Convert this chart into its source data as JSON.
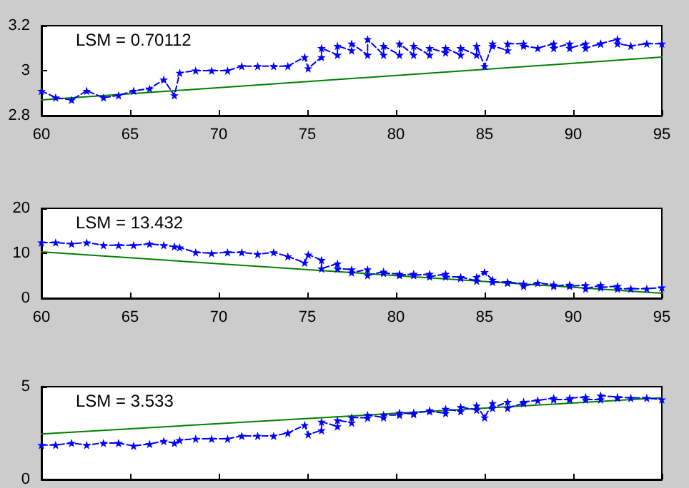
{
  "chart_data": [
    {
      "type": "line",
      "annotations": [
        "LSM = 0.70112"
      ],
      "xlim": [
        60,
        95
      ],
      "xticks": [
        60,
        65,
        70,
        75,
        80,
        85,
        90,
        95
      ],
      "ylim": [
        2.8,
        3.2
      ],
      "yticks": [
        2.8,
        3,
        3.2
      ],
      "grid": false,
      "series": [
        {
          "color": "#0000ff",
          "line_style": "dashed",
          "marker": "star",
          "x": [
            60,
            60.8,
            61.7,
            62.55,
            63.5,
            64.35,
            65.2,
            66.1,
            66.9,
            67.5,
            67.8,
            68.7,
            69.6,
            70.5,
            71.3,
            72.2,
            73.1,
            73.9,
            74.85,
            75.05,
            75.8,
            75.8,
            76.7,
            76.7,
            77.5,
            77.5,
            78.4,
            78.4,
            79.3,
            79.3,
            80.2,
            80.2,
            81,
            81,
            81.9,
            81.9,
            82.8,
            82.8,
            83.65,
            83.65,
            84.55,
            84.55,
            85,
            85.45,
            85.45,
            86.3,
            86.3,
            87.2,
            87.2,
            88,
            88.9,
            88.9,
            89.8,
            89.8,
            90.7,
            90.7,
            91.55,
            91.55,
            92.5,
            92.5,
            93.25,
            94.15,
            95
          ],
          "values": [
            2.91,
            2.88,
            2.87,
            2.91,
            2.88,
            2.89,
            2.91,
            2.92,
            2.96,
            2.89,
            2.99,
            3.0,
            3.0,
            3.0,
            3.02,
            3.02,
            3.02,
            3.02,
            3.06,
            3.01,
            3.06,
            3.1,
            3.07,
            3.11,
            3.09,
            3.12,
            3.07,
            3.14,
            3.07,
            3.11,
            3.07,
            3.12,
            3.07,
            3.11,
            3.07,
            3.1,
            3.08,
            3.1,
            3.07,
            3.1,
            3.07,
            3.11,
            3.02,
            3.12,
            3.11,
            3.09,
            3.12,
            3.12,
            3.11,
            3.1,
            3.12,
            3.1,
            3.12,
            3.1,
            3.12,
            3.1,
            3.12,
            3.12,
            3.14,
            3.12,
            3.11,
            3.12,
            3.12
          ]
        },
        {
          "color": "#008000",
          "line_style": "solid",
          "marker": "none",
          "x": [
            60,
            95
          ],
          "values": [
            2.87,
            3.06
          ]
        }
      ]
    },
    {
      "type": "line",
      "annotations": [
        "LSM = 13.432"
      ],
      "xlim": [
        60,
        95
      ],
      "xticks": [
        60,
        65,
        70,
        75,
        80,
        85,
        90,
        95
      ],
      "ylim": [
        0,
        20
      ],
      "yticks": [
        0,
        10,
        20
      ],
      "grid": false,
      "series": [
        {
          "color": "#0000ff",
          "line_style": "dashed",
          "marker": "star",
          "x": [
            60,
            60.8,
            61.7,
            62.55,
            63.5,
            64.35,
            65.2,
            66.1,
            66.9,
            67.5,
            67.8,
            68.7,
            69.6,
            70.5,
            71.3,
            72.2,
            73.1,
            73.9,
            74.85,
            75.05,
            75.8,
            75.8,
            76.7,
            76.7,
            77.5,
            77.5,
            78.4,
            78.4,
            79.3,
            79.3,
            80.2,
            80.2,
            81,
            81,
            81.9,
            81.9,
            82.8,
            82.8,
            83.65,
            83.65,
            84.55,
            84.55,
            85,
            85.45,
            85.45,
            86.3,
            86.3,
            87.2,
            87.2,
            88,
            88.9,
            88.9,
            89.8,
            89.8,
            90.7,
            90.7,
            91.55,
            91.55,
            92.5,
            92.5,
            93.25,
            94.15,
            95
          ],
          "values": [
            12.4,
            12.4,
            12.1,
            12.4,
            11.8,
            11.8,
            11.8,
            12.1,
            11.8,
            11.5,
            11.3,
            10.2,
            10.0,
            10.2,
            10.2,
            9.8,
            10.2,
            9.3,
            7.9,
            9.7,
            8.5,
            6.6,
            7.7,
            6.6,
            6.4,
            5.7,
            6.4,
            5.1,
            5.9,
            5.6,
            5.4,
            5.1,
            5.4,
            5.1,
            5.4,
            4.8,
            5.4,
            4.8,
            4.7,
            4.5,
            3.9,
            4.7,
            5.8,
            4.1,
            3.6,
            3.6,
            3.4,
            3.2,
            2.7,
            3.4,
            3.0,
            2.7,
            3.0,
            2.7,
            2.9,
            2.1,
            2.9,
            2.4,
            2.7,
            2.1,
            2.1,
            2.1,
            2.4
          ]
        },
        {
          "color": "#008000",
          "line_style": "solid",
          "marker": "none",
          "x": [
            60,
            95
          ],
          "values": [
            10.3,
            1.1
          ]
        }
      ]
    },
    {
      "type": "line",
      "annotations": [
        "LSM = 3.533"
      ],
      "xlim": [
        60,
        95
      ],
      "xticks": [
        60,
        65,
        70,
        75,
        80,
        85,
        90,
        95
      ],
      "ylim": [
        0,
        5
      ],
      "yticks": [
        0,
        5
      ],
      "grid": false,
      "tick_labels": "y",
      "series": [
        {
          "color": "#0000ff",
          "line_style": "dashed",
          "marker": "star",
          "x": [
            60,
            60.8,
            61.7,
            62.55,
            63.5,
            64.35,
            65.2,
            66.1,
            66.9,
            67.5,
            67.8,
            68.7,
            69.6,
            70.5,
            71.3,
            72.2,
            73.1,
            73.9,
            74.85,
            75.05,
            75.8,
            75.8,
            76.7,
            76.7,
            77.5,
            77.5,
            78.4,
            78.4,
            79.3,
            79.3,
            80.2,
            80.2,
            81,
            81,
            81.9,
            81.9,
            82.8,
            82.8,
            83.65,
            83.65,
            84.55,
            84.55,
            85,
            85.45,
            85.45,
            86.3,
            86.3,
            87.2,
            87.2,
            88,
            88.9,
            88.9,
            89.8,
            89.8,
            90.7,
            90.7,
            91.55,
            91.55,
            92.5,
            92.5,
            93.25,
            94.15,
            95
          ],
          "values": [
            1.86,
            1.86,
            1.96,
            1.86,
            1.96,
            1.96,
            1.81,
            1.91,
            2.07,
            1.96,
            2.12,
            2.19,
            2.19,
            2.19,
            2.35,
            2.35,
            2.35,
            2.5,
            2.93,
            2.42,
            2.65,
            3.11,
            2.86,
            3.19,
            3.06,
            3.34,
            3.32,
            3.47,
            3.34,
            3.47,
            3.47,
            3.6,
            3.52,
            3.6,
            3.67,
            3.72,
            3.57,
            3.8,
            3.67,
            3.9,
            3.75,
            3.98,
            3.34,
            4.11,
            3.85,
            4.18,
            3.85,
            4.11,
            4.18,
            4.26,
            4.39,
            4.31,
            4.31,
            4.39,
            4.44,
            4.31,
            4.31,
            4.52,
            4.44,
            4.39,
            4.39,
            4.39,
            4.31
          ]
        },
        {
          "color": "#008000",
          "line_style": "solid",
          "marker": "none",
          "x": [
            60,
            95
          ],
          "values": [
            2.45,
            4.4
          ]
        }
      ]
    }
  ]
}
